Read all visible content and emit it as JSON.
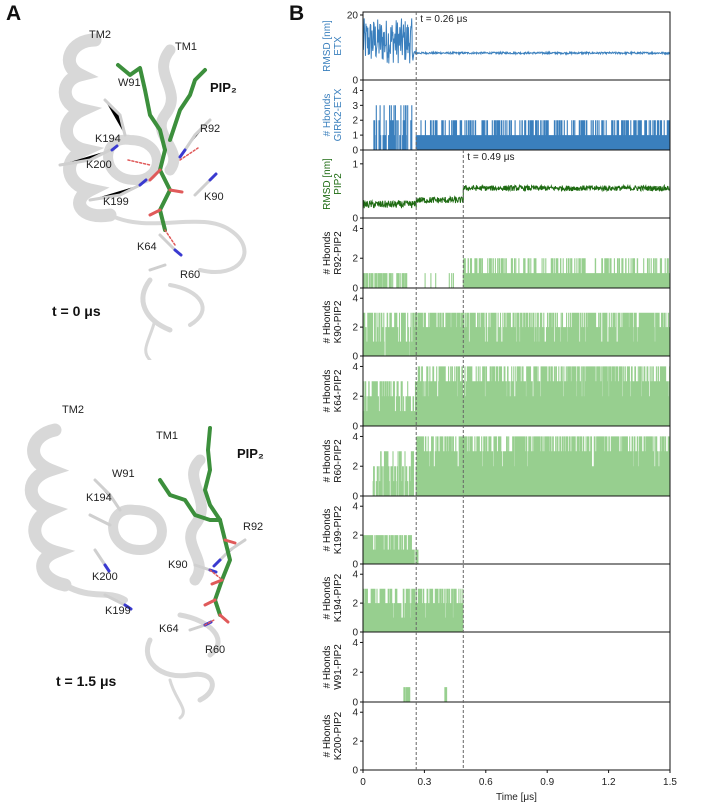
{
  "panel_a": {
    "letter": "A",
    "top": {
      "time_label": "t = 0 μs",
      "labels": {
        "tm2": "TM2",
        "tm1": "TM1",
        "w91": "W91",
        "pip2": "PIP₂",
        "k194": "K194",
        "r92": "R92",
        "k200": "K200",
        "k199": "K199",
        "k90": "K90",
        "k64": "K64",
        "r60": "R60"
      }
    },
    "bottom": {
      "time_label": "t = 1.5 μs",
      "labels": {
        "tm2": "TM2",
        "tm1": "TM1",
        "w91": "W91",
        "pip2": "PIP₂",
        "k194": "K194",
        "r92": "R92",
        "k200": "K200",
        "k199": "K199",
        "k90": "K90",
        "k64": "K64",
        "r60": "R60"
      }
    }
  },
  "panel_b": {
    "letter": "B"
  },
  "colors": {
    "blue": "#3a7fbd",
    "dark_green": "#1e6b12",
    "light_green": "#97cf8f",
    "axis": "#111111",
    "dashed": "#666666",
    "protein": "#d8d8d8",
    "lipid": "#3c8f3c",
    "oxygen": "#e05a5a",
    "nitrogen": "#3a3ad0"
  },
  "chart_data": {
    "type": "line",
    "xlabel": "Time [μs]",
    "xlim": [
      0,
      1.5
    ],
    "xticks": [
      "0",
      "0.3",
      "0.6",
      "0.9",
      "1.2",
      "1.5"
    ],
    "xtick_values": [
      0,
      0.3,
      0.6,
      0.9,
      1.2,
      1.5
    ],
    "vlines": [
      0.26,
      0.49
    ],
    "annotations": [
      {
        "text": "t = 0.26 μs",
        "x": 0.26,
        "panel": 0
      },
      {
        "text": "t = 0.49 μs",
        "x": 0.49,
        "panel": 2
      }
    ],
    "panels": [
      {
        "ylabel": "RMSD [nm]\nETX",
        "color": "blue",
        "style": "line",
        "ylim": [
          0,
          20
        ],
        "yticks": [
          "0",
          "20"
        ],
        "ytick_values": [
          0,
          20
        ],
        "segments": [
          {
            "x0": 0,
            "x1": 0.24,
            "level": 12,
            "noise": 7
          },
          {
            "x0": 0.24,
            "x1": 0.26,
            "level": 8,
            "noise": 2
          },
          {
            "x0": 0.26,
            "x1": 1.5,
            "level": 8.3,
            "noise": 0.3
          }
        ]
      },
      {
        "ylabel": "# Hbonds\nGIRK2-ETX",
        "color": "blue",
        "style": "bar",
        "ylim": [
          0,
          4.5
        ],
        "yticks": [
          "0",
          "1",
          "2",
          "3",
          "4"
        ],
        "ytick_values": [
          0,
          1,
          2,
          3,
          4
        ],
        "segments": [
          {
            "x0": 0.05,
            "x1": 0.24,
            "levels": [
              1,
              2,
              3
            ],
            "density": 0.35
          },
          {
            "x0": 0.26,
            "x1": 1.5,
            "levels": [
              1,
              1,
              1,
              2
            ],
            "density": 0.9
          }
        ]
      },
      {
        "ylabel": "RMSD [nm]\nPIP2",
        "color": "dark_green",
        "style": "line",
        "ylim": [
          0,
          1.2
        ],
        "yticks": [
          "0",
          "1"
        ],
        "ytick_values": [
          0,
          1
        ],
        "segments": [
          {
            "x0": 0,
            "x1": 0.26,
            "level": 0.25,
            "noise": 0.07
          },
          {
            "x0": 0.26,
            "x1": 0.49,
            "level": 0.33,
            "noise": 0.06
          },
          {
            "x0": 0.49,
            "x1": 1.5,
            "level": 0.55,
            "noise": 0.05
          }
        ]
      },
      {
        "ylabel": "# Hbonds\nR92-PIP2",
        "color": "light_green",
        "style": "bar",
        "ylim": [
          0,
          4.5
        ],
        "yticks": [
          "0",
          "2",
          "4"
        ],
        "ytick_values": [
          0,
          2,
          4
        ],
        "segments": [
          {
            "x0": 0,
            "x1": 0.22,
            "levels": [
              1
            ],
            "density": 0.3
          },
          {
            "x0": 0.3,
            "x1": 0.49,
            "levels": [
              1
            ],
            "density": 0.05
          },
          {
            "x0": 0.49,
            "x1": 1.5,
            "levels": [
              1,
              1,
              1,
              2
            ],
            "density": 0.95
          }
        ]
      },
      {
        "ylabel": "# Hbonds\nK90-PIP2",
        "color": "light_green",
        "style": "bar",
        "ylim": [
          0,
          4.5
        ],
        "yticks": [
          "0",
          "2",
          "4"
        ],
        "ytick_values": [
          0,
          2,
          4
        ],
        "segments": [
          {
            "x0": 0,
            "x1": 0.26,
            "levels": [
              1,
              2,
              3
            ],
            "density": 0.7
          },
          {
            "x0": 0.26,
            "x1": 0.49,
            "levels": [
              2,
              3
            ],
            "density": 0.9
          },
          {
            "x0": 0.49,
            "x1": 1.5,
            "levels": [
              1,
              2,
              3
            ],
            "density": 0.95
          }
        ]
      },
      {
        "ylabel": "# Hbonds\nK64-PIP2",
        "color": "light_green",
        "style": "bar",
        "ylim": [
          0,
          4.5
        ],
        "yticks": [
          "0",
          "2",
          "4"
        ],
        "ytick_values": [
          0,
          2,
          4
        ],
        "segments": [
          {
            "x0": 0,
            "x1": 0.26,
            "levels": [
              1,
              2,
              3
            ],
            "density": 0.9
          },
          {
            "x0": 0.26,
            "x1": 1.5,
            "levels": [
              2,
              3,
              4
            ],
            "density": 0.95
          }
        ]
      },
      {
        "ylabel": "# Hbonds\nR60-PIP2",
        "color": "light_green",
        "style": "bar",
        "ylim": [
          0,
          4.5
        ],
        "yticks": [
          "0",
          "2",
          "4"
        ],
        "ytick_values": [
          0,
          2,
          4
        ],
        "segments": [
          {
            "x0": 0.05,
            "x1": 0.25,
            "levels": [
              1,
              2,
              3
            ],
            "density": 0.5
          },
          {
            "x0": 0.26,
            "x1": 1.5,
            "levels": [
              2,
              3,
              4
            ],
            "density": 0.95
          }
        ]
      },
      {
        "ylabel": "# Hbonds\nK199-PIP2",
        "color": "light_green",
        "style": "bar",
        "ylim": [
          0,
          4.5
        ],
        "yticks": [
          "0",
          "2",
          "4"
        ],
        "ytick_values": [
          0,
          2,
          4
        ],
        "segments": [
          {
            "x0": 0,
            "x1": 0.25,
            "levels": [
              1,
              2
            ],
            "density": 0.9
          },
          {
            "x0": 0.25,
            "x1": 0.27,
            "levels": [
              1
            ],
            "density": 0.5
          }
        ]
      },
      {
        "ylabel": "# Hbonds\nK194-PIP2",
        "color": "light_green",
        "style": "bar",
        "ylim": [
          0,
          4.5
        ],
        "yticks": [
          "0",
          "2",
          "4"
        ],
        "ytick_values": [
          0,
          2,
          4
        ],
        "segments": [
          {
            "x0": 0,
            "x1": 0.49,
            "levels": [
              1,
              2,
              3
            ],
            "density": 0.9
          }
        ]
      },
      {
        "ylabel": "# Hbonds\nW91-PIP2",
        "color": "light_green",
        "style": "bar",
        "ylim": [
          0,
          4.5
        ],
        "yticks": [
          "0",
          "2",
          "4"
        ],
        "ytick_values": [
          0,
          2,
          4
        ],
        "segments": [
          {
            "x0": 0.2,
            "x1": 0.23,
            "levels": [
              1
            ],
            "density": 0.8
          },
          {
            "x0": 0.4,
            "x1": 0.41,
            "levels": [
              1
            ],
            "density": 0.8
          }
        ]
      },
      {
        "ylabel": "# Hbonds\nK200-PIP2",
        "color": "light_green",
        "style": "bar",
        "ylim": [
          0,
          4.5
        ],
        "yticks": [
          "0",
          "2",
          "4"
        ],
        "ytick_values": [
          0,
          2,
          4
        ],
        "segments": []
      }
    ]
  }
}
